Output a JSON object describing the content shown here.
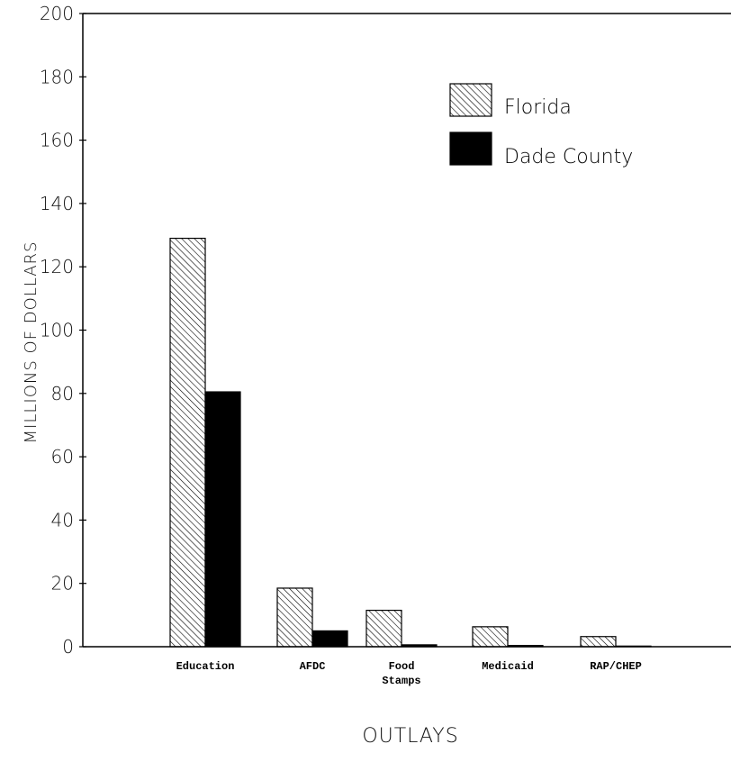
{
  "chart_data": {
    "type": "bar",
    "ylabel": "MILLIONS OF DOLLARS",
    "xlabel": "OUTLAYS",
    "ylim": [
      0,
      200
    ],
    "yticks": [
      "0",
      "20",
      "40",
      "60",
      "80",
      "100",
      "120",
      "140",
      "160",
      "180",
      "200"
    ],
    "categories": [
      [
        "Education"
      ],
      [
        "AFDC"
      ],
      [
        "Food",
        "Stamps"
      ],
      [
        "Medicaid"
      ],
      [
        "RAP/CHEP"
      ]
    ],
    "series": [
      {
        "name": "Florida",
        "values": [
          129,
          18.5,
          11.5,
          6.3,
          3.2
        ],
        "style": "hatched"
      },
      {
        "name": "Dade County",
        "values": [
          80.5,
          5,
          0.6,
          0.4,
          0.2
        ],
        "style": "solid"
      }
    ],
    "legend_position": "top-right",
    "colors": {
      "hatch": "#000000",
      "solid": "#000000",
      "background": "#ffffff"
    }
  }
}
